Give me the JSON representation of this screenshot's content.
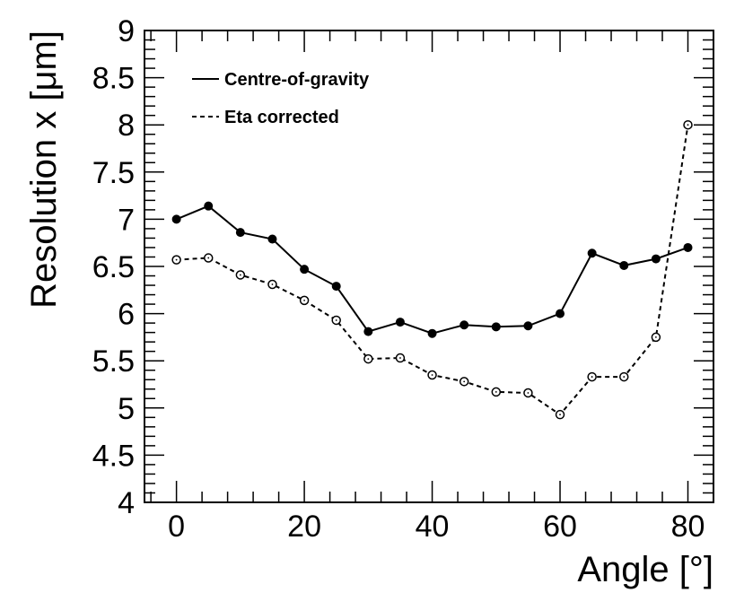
{
  "chart_data": {
    "type": "line",
    "xlabel": "Angle [°]",
    "ylabel": "Resolution x [μm]",
    "xlim": [
      -5,
      84
    ],
    "ylim": [
      4,
      9
    ],
    "x_ticks": [
      0,
      20,
      40,
      60,
      80
    ],
    "y_ticks": [
      4,
      4.5,
      5,
      5.5,
      6,
      6.5,
      7,
      7.5,
      8,
      8.5,
      9
    ],
    "x_tick_labels": [
      "0",
      "20",
      "40",
      "60",
      "80"
    ],
    "y_tick_labels": [
      "4",
      "4.5",
      "5",
      "5.5",
      "6",
      "6.5",
      "7",
      "7.5",
      "8",
      "8.5",
      "9"
    ],
    "grid": false,
    "legend_position": "top-left",
    "series": [
      {
        "name": "Centre-of-gravity",
        "line_style": "solid",
        "marker": "filled-circle",
        "x": [
          0,
          5,
          10,
          15,
          20,
          25,
          30,
          35,
          40,
          45,
          50,
          55,
          60,
          65,
          70,
          75,
          80
        ],
        "values": [
          7.0,
          7.14,
          6.86,
          6.79,
          6.47,
          6.29,
          5.81,
          5.91,
          5.79,
          5.88,
          5.86,
          5.87,
          6.0,
          6.64,
          6.51,
          6.58,
          6.7
        ]
      },
      {
        "name": "Eta corrected",
        "line_style": "dashed",
        "marker": "open-circle",
        "x": [
          0,
          5,
          10,
          15,
          20,
          25,
          30,
          35,
          40,
          45,
          50,
          55,
          60,
          65,
          70,
          75,
          80
        ],
        "values": [
          6.57,
          6.59,
          6.41,
          6.31,
          6.14,
          5.93,
          5.52,
          5.53,
          5.35,
          5.28,
          5.17,
          5.16,
          4.93,
          5.33,
          5.33,
          5.75,
          8.0
        ]
      }
    ]
  }
}
